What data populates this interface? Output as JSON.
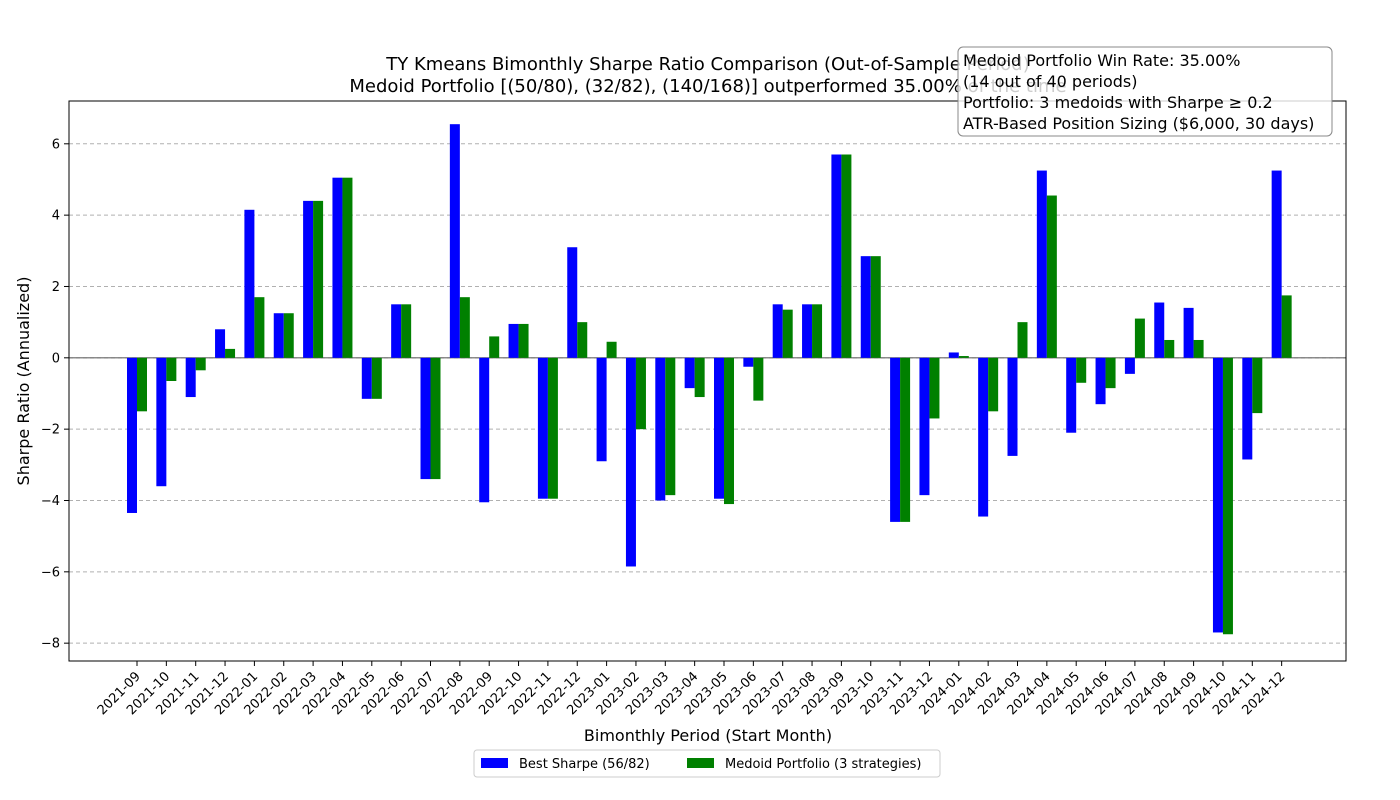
{
  "chart_data": {
    "type": "bar",
    "title": "TY Kmeans Bimonthly Sharpe Ratio Comparison (Out-of-Sample Period)",
    "subtitle": "Medoid Portfolio [(50/80), (32/82), (140/168)] outperformed 35.00% of the time",
    "xlabel": "Bimonthly Period (Start Month)",
    "ylabel": "Sharpe Ratio (Annualized)",
    "ylim": [
      -8.5,
      7.2
    ],
    "yticks": [
      -8,
      -6,
      -4,
      -2,
      0,
      2,
      4,
      6
    ],
    "grid": "y-dashed",
    "legend_position": "bottom-center",
    "categories": [
      "2021-09",
      "2021-10",
      "2021-11",
      "2021-12",
      "2022-01",
      "2022-02",
      "2022-03",
      "2022-04",
      "2022-05",
      "2022-06",
      "2022-07",
      "2022-08",
      "2022-09",
      "2022-10",
      "2022-11",
      "2022-12",
      "2023-01",
      "2023-02",
      "2023-03",
      "2023-04",
      "2023-05",
      "2023-06",
      "2023-07",
      "2023-08",
      "2023-09",
      "2023-10",
      "2023-11",
      "2023-12",
      "2024-01",
      "2024-02",
      "2024-03",
      "2024-04",
      "2024-05",
      "2024-06",
      "2024-07",
      "2024-08",
      "2024-09",
      "2024-10",
      "2024-11",
      "2024-12"
    ],
    "series": [
      {
        "name": "Best Sharpe (56/82)",
        "color": "#0000ff",
        "values": [
          -4.35,
          -3.6,
          -1.1,
          0.8,
          4.15,
          1.25,
          4.4,
          5.05,
          -1.15,
          1.5,
          -3.4,
          6.55,
          -4.05,
          0.95,
          -3.95,
          3.1,
          -2.9,
          -5.85,
          -4.0,
          -0.85,
          -3.95,
          -0.25,
          1.5,
          1.5,
          5.7,
          2.85,
          -4.6,
          -3.85,
          0.15,
          -4.45,
          -2.75,
          5.25,
          -2.1,
          -1.3,
          -0.45,
          1.55,
          1.4,
          -7.7,
          -2.85,
          5.25
        ]
      },
      {
        "name": "Medoid Portfolio (3 strategies)",
        "color": "#008000",
        "values": [
          -1.5,
          -0.65,
          -0.35,
          0.25,
          1.7,
          1.25,
          4.4,
          5.05,
          -1.15,
          1.5,
          -3.4,
          1.7,
          0.6,
          0.95,
          -3.95,
          1.0,
          0.45,
          -2.0,
          -3.85,
          -1.1,
          -4.1,
          -1.2,
          1.35,
          1.5,
          5.7,
          2.85,
          -4.6,
          -1.7,
          0.05,
          -1.5,
          1.0,
          4.55,
          -0.7,
          -0.85,
          1.1,
          0.5,
          0.5,
          -7.75,
          -1.55,
          1.75
        ]
      }
    ],
    "annotation": {
      "position": "top-right",
      "lines": [
        "Medoid Portfolio Win Rate: 35.00%",
        "(14 out of 40 periods)",
        "Portfolio: 3 medoids with Sharpe ≥ 0.2",
        "ATR-Based Position Sizing ($6,000, 30 days)"
      ]
    }
  }
}
